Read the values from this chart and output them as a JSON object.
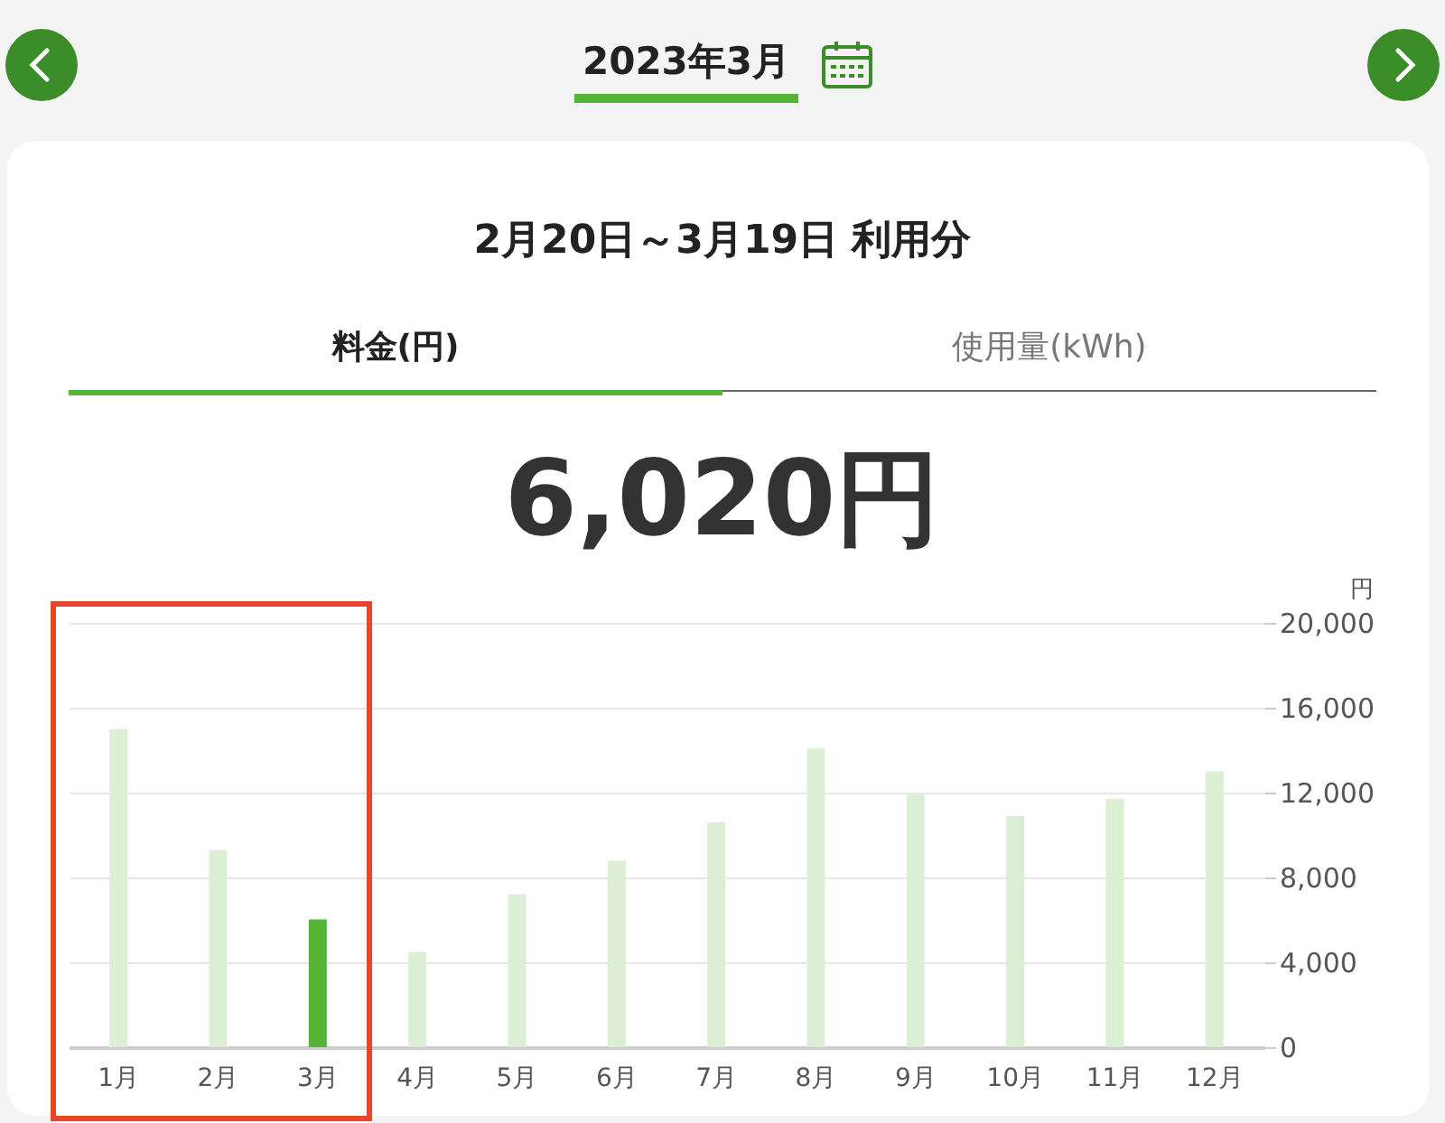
{
  "chart_data": {
    "type": "bar",
    "title": "2023年3月",
    "subtitle": "2月20日～3月19日 利用分",
    "annotations": [
      "料金(円)",
      "使用量(kWh)",
      "6,020円"
    ],
    "ylabel": "円",
    "categories": [
      "1月",
      "2月",
      "3月",
      "4月",
      "5月",
      "6月",
      "7月",
      "8月",
      "9月",
      "10月",
      "11月",
      "12月"
    ],
    "values": [
      15000,
      9300,
      6020,
      4500,
      7200,
      8800,
      10600,
      14100,
      11900,
      10900,
      11700,
      13000
    ],
    "colors": [
      "#dcefd5",
      "#dcefd5",
      "#55b435",
      "#dcefd5",
      "#dcefd5",
      "#dcefd5",
      "#dcefd5",
      "#dcefd5",
      "#dcefd5",
      "#dcefd5",
      "#dcefd5",
      "#dcefd5"
    ],
    "ylim": [
      0,
      20000
    ],
    "yticks": [
      0,
      {
        "value": 4000,
        "label": "4,000"
      },
      {
        "value": 8000,
        "label": "8,000"
      },
      {
        "value": 12000,
        "label": "12,000"
      },
      {
        "value": 16000,
        "label": "16,000"
      },
      {
        "value": 20000,
        "label": "20,000"
      }
    ],
    "grid": "y"
  }
}
